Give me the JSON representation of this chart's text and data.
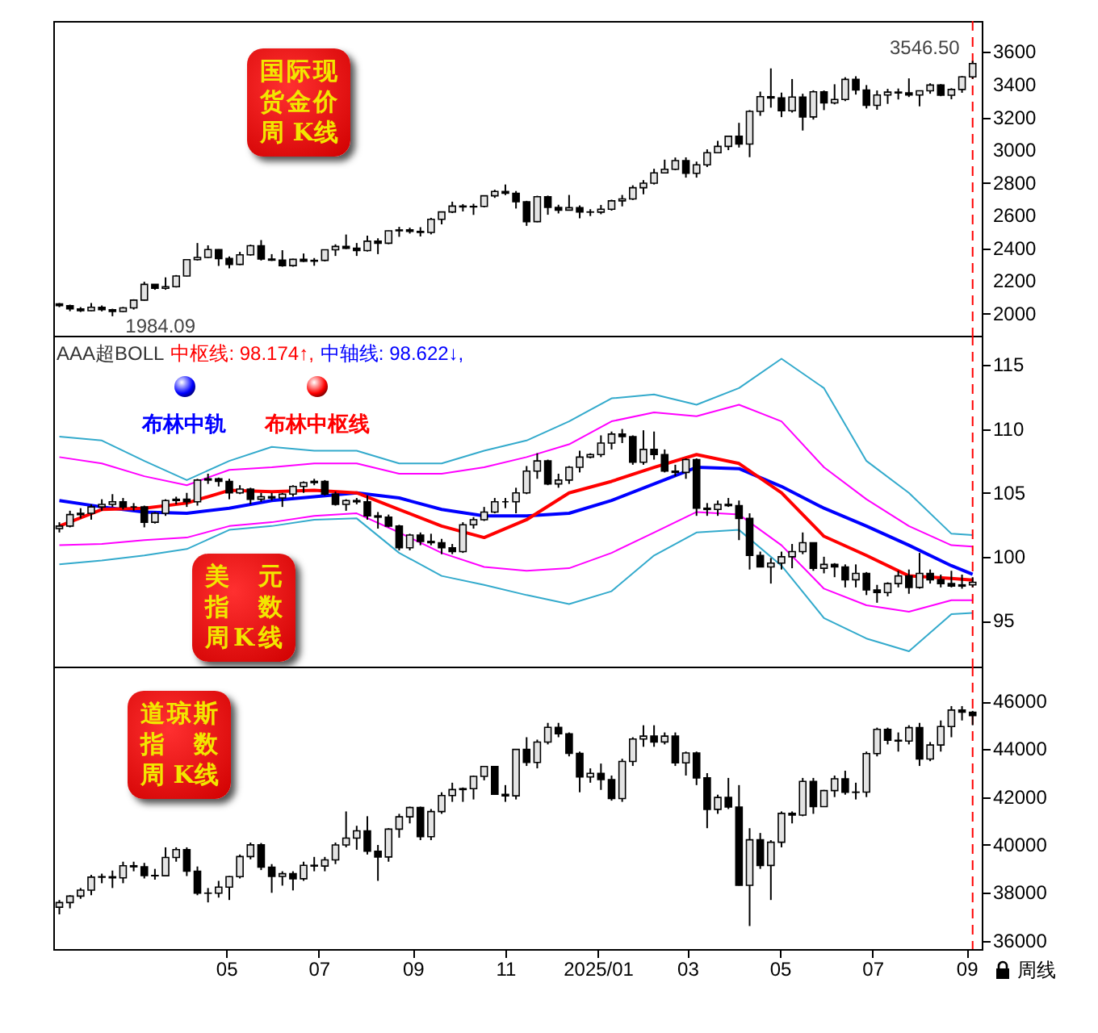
{
  "chart_data": [
    {
      "type": "candlestick",
      "title": "国际现货金价周 K线",
      "tick_labels": "y",
      "xlim": [
        "2024-01-08",
        "2025-09-11"
      ],
      "ylim": [
        1865,
        3790
      ],
      "yticks": [
        2000,
        2200,
        2400,
        2600,
        2800,
        3000,
        3200,
        3400,
        3600
      ],
      "x": [
        "2024-01-12",
        "2024-01-19",
        "2024-01-26",
        "2024-02-02",
        "2024-02-09",
        "2024-02-16",
        "2024-02-23",
        "2024-03-01",
        "2024-03-08",
        "2024-03-15",
        "2024-03-22",
        "2024-03-29",
        "2024-04-05",
        "2024-04-12",
        "2024-04-19",
        "2024-04-26",
        "2024-05-03",
        "2024-05-10",
        "2024-05-17",
        "2024-05-24",
        "2024-05-31",
        "2024-06-07",
        "2024-06-14",
        "2024-06-21",
        "2024-06-28",
        "2024-07-05",
        "2024-07-12",
        "2024-07-19",
        "2024-07-26",
        "2024-08-02",
        "2024-08-09",
        "2024-08-16",
        "2024-08-23",
        "2024-08-30",
        "2024-09-06",
        "2024-09-13",
        "2024-09-20",
        "2024-09-27",
        "2024-10-04",
        "2024-10-11",
        "2024-10-18",
        "2024-10-25",
        "2024-11-01",
        "2024-11-08",
        "2024-11-15",
        "2024-11-22",
        "2024-11-29",
        "2024-12-06",
        "2024-12-13",
        "2024-12-20",
        "2024-12-27",
        "2025-01-03",
        "2025-01-10",
        "2025-01-17",
        "2025-01-24",
        "2025-01-31",
        "2025-02-07",
        "2025-02-14",
        "2025-02-21",
        "2025-02-28",
        "2025-03-07",
        "2025-03-14",
        "2025-03-21",
        "2025-03-28",
        "2025-04-04",
        "2025-04-11",
        "2025-04-18",
        "2025-04-25",
        "2025-05-02",
        "2025-05-09",
        "2025-05-16",
        "2025-05-23",
        "2025-05-30",
        "2025-06-06",
        "2025-06-13",
        "2025-06-20",
        "2025-06-27",
        "2025-07-04",
        "2025-07-11",
        "2025-07-18",
        "2025-07-25",
        "2025-08-01",
        "2025-08-08",
        "2025-08-15",
        "2025-08-22",
        "2025-08-29",
        "2025-09-05"
      ],
      "ohlc": [
        [
          2060,
          2065,
          2040,
          2049
        ],
        [
          2049,
          2055,
          2015,
          2029
        ],
        [
          2029,
          2040,
          2010,
          2018
        ],
        [
          2018,
          2065,
          2015,
          2039
        ],
        [
          2039,
          2050,
          2014,
          2024
        ],
        [
          2024,
          2030,
          1984.09,
          2013
        ],
        [
          2013,
          2041,
          2010,
          2035
        ],
        [
          2035,
          2088,
          2025,
          2083
        ],
        [
          2083,
          2195,
          2080,
          2179
        ],
        [
          2179,
          2180,
          2146,
          2155
        ],
        [
          2155,
          2222,
          2146,
          2165
        ],
        [
          2165,
          2236,
          2160,
          2230
        ],
        [
          2230,
          2332,
          2228,
          2330
        ],
        [
          2330,
          2432,
          2325,
          2344
        ],
        [
          2344,
          2418,
          2340,
          2392
        ],
        [
          2392,
          2394,
          2292,
          2337
        ],
        [
          2337,
          2350,
          2277,
          2301
        ],
        [
          2301,
          2378,
          2297,
          2360
        ],
        [
          2360,
          2422,
          2355,
          2415
        ],
        [
          2415,
          2450,
          2325,
          2334
        ],
        [
          2334,
          2364,
          2322,
          2327
        ],
        [
          2327,
          2388,
          2287,
          2294
        ],
        [
          2294,
          2336,
          2287,
          2332
        ],
        [
          2332,
          2368,
          2316,
          2321
        ],
        [
          2321,
          2340,
          2293,
          2326
        ],
        [
          2326,
          2392,
          2320,
          2391
        ],
        [
          2391,
          2424,
          2353,
          2411
        ],
        [
          2411,
          2484,
          2395,
          2400
        ],
        [
          2400,
          2432,
          2353,
          2386
        ],
        [
          2386,
          2477,
          2380,
          2443
        ],
        [
          2443,
          2461,
          2364,
          2431
        ],
        [
          2431,
          2509,
          2425,
          2507
        ],
        [
          2507,
          2531,
          2470,
          2512
        ],
        [
          2512,
          2526,
          2490,
          2503
        ],
        [
          2503,
          2529,
          2472,
          2497
        ],
        [
          2497,
          2586,
          2485,
          2577
        ],
        [
          2577,
          2625,
          2546,
          2622
        ],
        [
          2622,
          2685,
          2615,
          2658
        ],
        [
          2658,
          2670,
          2625,
          2653
        ],
        [
          2653,
          2672,
          2604,
          2656
        ],
        [
          2656,
          2722,
          2650,
          2721
        ],
        [
          2721,
          2758,
          2708,
          2747
        ],
        [
          2747,
          2790,
          2725,
          2736
        ],
        [
          2736,
          2750,
          2643,
          2684
        ],
        [
          2684,
          2690,
          2537,
          2563
        ],
        [
          2563,
          2721,
          2559,
          2715
        ],
        [
          2715,
          2722,
          2605,
          2650
        ],
        [
          2650,
          2666,
          2613,
          2633
        ],
        [
          2633,
          2726,
          2630,
          2648
        ],
        [
          2648,
          2662,
          2583,
          2622
        ],
        [
          2622,
          2639,
          2597,
          2621
        ],
        [
          2621,
          2665,
          2608,
          2639
        ],
        [
          2639,
          2697,
          2630,
          2690
        ],
        [
          2690,
          2726,
          2656,
          2702
        ],
        [
          2702,
          2785,
          2695,
          2770
        ],
        [
          2770,
          2817,
          2730,
          2798
        ],
        [
          2798,
          2886,
          2790,
          2861
        ],
        [
          2861,
          2942,
          2860,
          2883
        ],
        [
          2883,
          2955,
          2878,
          2936
        ],
        [
          2936,
          2956,
          2832,
          2858
        ],
        [
          2858,
          2930,
          2832,
          2910
        ],
        [
          2910,
          3005,
          2897,
          2984
        ],
        [
          2984,
          3057,
          2982,
          3023
        ],
        [
          3023,
          3087,
          3000,
          3085
        ],
        [
          3085,
          3167,
          3016,
          3037
        ],
        [
          3037,
          3245,
          2957,
          3237
        ],
        [
          3237,
          3358,
          3210,
          3327
        ],
        [
          3327,
          3500,
          3260,
          3319
        ],
        [
          3319,
          3352,
          3202,
          3241
        ],
        [
          3241,
          3435,
          3230,
          3325
        ],
        [
          3325,
          3345,
          3120,
          3203
        ],
        [
          3203,
          3366,
          3187,
          3357
        ],
        [
          3357,
          3365,
          3245,
          3289
        ],
        [
          3289,
          3403,
          3280,
          3310
        ],
        [
          3310,
          3446,
          3300,
          3433
        ],
        [
          3433,
          3452,
          3340,
          3368
        ],
        [
          3368,
          3398,
          3255,
          3274
        ],
        [
          3274,
          3365,
          3247,
          3337
        ],
        [
          3337,
          3375,
          3283,
          3355
        ],
        [
          3355,
          3377,
          3310,
          3350
        ],
        [
          3350,
          3439,
          3325,
          3337
        ],
        [
          3337,
          3363,
          3268,
          3363
        ],
        [
          3363,
          3409,
          3345,
          3398
        ],
        [
          3398,
          3404,
          3330,
          3336
        ],
        [
          3336,
          3379,
          3311,
          3371
        ],
        [
          3371,
          3453,
          3351,
          3448
        ],
        [
          3448,
          3546.5,
          3436,
          3530
        ]
      ],
      "annotations": [
        {
          "text": "1984.09",
          "x": "2024-02-16",
          "y": 1984.09
        },
        {
          "text": "3546.50",
          "x": "2025-09-05",
          "y": 3546.5
        }
      ],
      "ref_lines": [
        {
          "axis": "x",
          "value": "2025-09-05",
          "color": "#ff0000",
          "line_style": "dashed"
        }
      ]
    },
    {
      "type": "candlestick",
      "title": "美元指数周K线",
      "tick_labels": "y",
      "legend": "top left",
      "xlim": [
        "2024-01-08",
        "2025-09-11"
      ],
      "ylim": [
        91.4,
        117.3
      ],
      "yticks": [
        95,
        100,
        105,
        110,
        115
      ],
      "x": [
        "2024-01-12",
        "2024-01-19",
        "2024-01-26",
        "2024-02-02",
        "2024-02-09",
        "2024-02-16",
        "2024-02-23",
        "2024-03-01",
        "2024-03-08",
        "2024-03-15",
        "2024-03-22",
        "2024-03-29",
        "2024-04-05",
        "2024-04-12",
        "2024-04-19",
        "2024-04-26",
        "2024-05-03",
        "2024-05-10",
        "2024-05-17",
        "2024-05-24",
        "2024-05-31",
        "2024-06-07",
        "2024-06-14",
        "2024-06-21",
        "2024-06-28",
        "2024-07-05",
        "2024-07-12",
        "2024-07-19",
        "2024-07-26",
        "2024-08-02",
        "2024-08-09",
        "2024-08-16",
        "2024-08-23",
        "2024-08-30",
        "2024-09-06",
        "2024-09-13",
        "2024-09-20",
        "2024-09-27",
        "2024-10-04",
        "2024-10-11",
        "2024-10-18",
        "2024-10-25",
        "2024-11-01",
        "2024-11-08",
        "2024-11-15",
        "2024-11-22",
        "2024-11-29",
        "2024-12-06",
        "2024-12-13",
        "2024-12-20",
        "2024-12-27",
        "2025-01-03",
        "2025-01-10",
        "2025-01-17",
        "2025-01-24",
        "2025-01-31",
        "2025-02-07",
        "2025-02-14",
        "2025-02-21",
        "2025-02-28",
        "2025-03-07",
        "2025-03-14",
        "2025-03-21",
        "2025-03-28",
        "2025-04-04",
        "2025-04-11",
        "2025-04-18",
        "2025-04-25",
        "2025-05-02",
        "2025-05-09",
        "2025-05-16",
        "2025-05-23",
        "2025-05-30",
        "2025-06-06",
        "2025-06-13",
        "2025-06-20",
        "2025-06-27",
        "2025-07-04",
        "2025-07-11",
        "2025-07-18",
        "2025-07-25",
        "2025-08-01",
        "2025-08-08",
        "2025-08-15",
        "2025-08-22",
        "2025-08-29",
        "2025-09-05"
      ],
      "ohlc": [
        [
          102.2,
          102.7,
          101.9,
          102.4
        ],
        [
          102.4,
          103.6,
          102.3,
          103.3
        ],
        [
          103.3,
          103.8,
          103.0,
          103.4
        ],
        [
          103.4,
          104.1,
          102.9,
          103.9
        ],
        [
          103.9,
          104.5,
          103.6,
          104.1
        ],
        [
          104.1,
          104.9,
          103.9,
          104.3
        ],
        [
          104.3,
          104.6,
          103.7,
          103.9
        ],
        [
          103.9,
          104.2,
          103.6,
          103.9
        ],
        [
          103.9,
          104.0,
          102.3,
          102.7
        ],
        [
          102.7,
          103.5,
          102.6,
          103.4
        ],
        [
          103.4,
          104.5,
          103.2,
          104.4
        ],
        [
          104.4,
          104.7,
          104.1,
          104.5
        ],
        [
          104.5,
          105.0,
          103.9,
          104.3
        ],
        [
          104.3,
          106.1,
          104.0,
          106.0
        ],
        [
          106.0,
          106.5,
          105.7,
          106.1
        ],
        [
          106.1,
          106.2,
          105.5,
          105.9
        ],
        [
          105.9,
          106.1,
          104.5,
          105.0
        ],
        [
          105.0,
          105.6,
          104.9,
          105.3
        ],
        [
          105.3,
          105.4,
          104.1,
          104.5
        ],
        [
          104.5,
          105.0,
          104.3,
          104.7
        ],
        [
          104.7,
          105.0,
          104.4,
          104.6
        ],
        [
          104.6,
          105.0,
          103.9,
          104.9
        ],
        [
          104.9,
          105.6,
          104.7,
          105.5
        ],
        [
          105.5,
          105.9,
          105.0,
          105.8
        ],
        [
          105.8,
          106.1,
          105.6,
          105.9
        ],
        [
          105.9,
          106.0,
          104.8,
          104.9
        ],
        [
          104.9,
          105.1,
          104.0,
          104.1
        ],
        [
          104.1,
          104.5,
          103.6,
          104.4
        ],
        [
          104.4,
          104.6,
          104.1,
          104.3
        ],
        [
          104.3,
          104.8,
          102.9,
          103.2
        ],
        [
          103.2,
          103.5,
          102.2,
          103.1
        ],
        [
          103.1,
          103.3,
          102.3,
          102.4
        ],
        [
          102.4,
          102.5,
          100.5,
          100.7
        ],
        [
          100.7,
          101.8,
          100.5,
          101.7
        ],
        [
          101.7,
          101.9,
          100.9,
          101.2
        ],
        [
          101.2,
          101.8,
          100.9,
          101.1
        ],
        [
          101.1,
          101.4,
          100.2,
          100.7
        ],
        [
          100.7,
          101.0,
          100.2,
          100.4
        ],
        [
          100.4,
          102.7,
          100.3,
          102.5
        ],
        [
          102.5,
          103.1,
          102.2,
          102.9
        ],
        [
          102.9,
          103.9,
          102.8,
          103.5
        ],
        [
          103.5,
          104.6,
          103.4,
          104.3
        ],
        [
          104.3,
          104.6,
          103.8,
          104.3
        ],
        [
          104.3,
          105.4,
          103.4,
          105.0
        ],
        [
          105.0,
          107.1,
          104.9,
          106.7
        ],
        [
          106.7,
          108.1,
          106.1,
          107.5
        ],
        [
          107.5,
          107.6,
          105.6,
          105.7
        ],
        [
          105.7,
          106.5,
          105.4,
          106.0
        ],
        [
          106.0,
          107.1,
          105.7,
          107.0
        ],
        [
          107.0,
          108.3,
          106.6,
          107.8
        ],
        [
          107.8,
          108.1,
          107.7,
          108.0
        ],
        [
          108.0,
          109.5,
          107.8,
          108.9
        ],
        [
          108.9,
          109.8,
          108.4,
          109.6
        ],
        [
          109.6,
          110.0,
          108.9,
          109.4
        ],
        [
          109.4,
          109.5,
          107.2,
          107.4
        ],
        [
          107.4,
          109.9,
          107.2,
          108.4
        ],
        [
          108.4,
          109.8,
          107.6,
          108.0
        ],
        [
          108.0,
          108.4,
          106.6,
          106.7
        ],
        [
          106.7,
          107.2,
          106.3,
          106.6
        ],
        [
          106.6,
          107.7,
          106.1,
          107.6
        ],
        [
          107.6,
          107.7,
          103.2,
          103.8
        ],
        [
          103.8,
          104.2,
          103.2,
          103.7
        ],
        [
          103.7,
          104.4,
          103.2,
          104.1
        ],
        [
          104.1,
          104.6,
          103.9,
          104.0
        ],
        [
          104.0,
          104.4,
          101.3,
          103.0
        ],
        [
          103.0,
          103.4,
          99.0,
          100.1
        ],
        [
          100.1,
          100.4,
          99.2,
          99.2
        ],
        [
          99.2,
          99.9,
          97.9,
          99.5
        ],
        [
          99.5,
          100.4,
          99.0,
          100.0
        ],
        [
          100.0,
          101.0,
          99.1,
          100.4
        ],
        [
          100.4,
          101.9,
          100.2,
          101.1
        ],
        [
          101.1,
          101.1,
          98.9,
          99.1
        ],
        [
          99.1,
          100.0,
          98.7,
          99.4
        ],
        [
          99.4,
          99.5,
          98.4,
          99.2
        ],
        [
          99.2,
          99.4,
          97.6,
          98.2
        ],
        [
          98.2,
          99.4,
          97.6,
          98.7
        ],
        [
          98.7,
          98.8,
          97.0,
          97.4
        ],
        [
          97.4,
          97.8,
          96.4,
          97.2
        ],
        [
          97.2,
          98.0,
          96.9,
          97.9
        ],
        [
          97.9,
          98.9,
          97.6,
          98.5
        ],
        [
          98.5,
          99.0,
          97.1,
          97.6
        ],
        [
          97.6,
          100.3,
          97.5,
          98.7
        ],
        [
          98.7,
          99.0,
          97.9,
          98.2
        ],
        [
          98.2,
          98.6,
          97.6,
          97.9
        ],
        [
          97.9,
          98.9,
          97.6,
          97.7
        ],
        [
          97.7,
          98.6,
          97.5,
          97.8
        ],
        [
          97.8,
          98.4,
          97.6,
          98.0
        ]
      ],
      "series": [
        {
          "type": "line",
          "name": "布林中轨",
          "color": "#0000ff",
          "x": [
            "2024-01-12",
            "2024-02-09",
            "2024-03-08",
            "2024-04-05",
            "2024-05-03",
            "2024-05-31",
            "2024-06-28",
            "2024-07-26",
            "2024-08-23",
            "2024-09-20",
            "2024-10-18",
            "2024-11-15",
            "2024-12-13",
            "2025-01-10",
            "2025-02-07",
            "2025-03-07",
            "2025-04-04",
            "2025-05-02",
            "2025-05-30",
            "2025-06-27",
            "2025-07-25",
            "2025-08-22",
            "2025-09-05"
          ],
          "values": [
            104.4,
            103.9,
            103.5,
            103.4,
            103.8,
            104.4,
            104.7,
            105.0,
            104.6,
            103.7,
            103.2,
            103.2,
            103.4,
            104.4,
            105.7,
            107.0,
            106.9,
            105.5,
            103.8,
            102.4,
            100.9,
            99.3,
            98.622
          ]
        },
        {
          "type": "line",
          "name": "布林中枢线",
          "color": "#ff0000",
          "x": [
            "2024-01-12",
            "2024-02-09",
            "2024-03-08",
            "2024-04-05",
            "2024-05-03",
            "2024-05-31",
            "2024-06-28",
            "2024-07-26",
            "2024-08-23",
            "2024-09-20",
            "2024-10-18",
            "2024-11-15",
            "2024-12-13",
            "2025-01-10",
            "2025-02-07",
            "2025-03-07",
            "2025-04-04",
            "2025-05-02",
            "2025-05-30",
            "2025-06-27",
            "2025-07-25",
            "2025-08-22",
            "2025-09-05"
          ],
          "values": [
            102.4,
            103.7,
            103.8,
            104.2,
            105.2,
            105.1,
            105.2,
            105.0,
            103.7,
            102.4,
            101.5,
            102.9,
            105.0,
            105.9,
            107.0,
            108.0,
            107.3,
            105.0,
            101.6,
            100.1,
            98.5,
            98.3,
            98.174
          ]
        },
        {
          "type": "line",
          "color": "#ff00ff",
          "x": [
            "2024-01-12",
            "2024-02-09",
            "2024-03-08",
            "2024-04-05",
            "2024-05-03",
            "2024-05-31",
            "2024-06-28",
            "2024-07-26",
            "2024-08-23",
            "2024-09-20",
            "2024-10-18",
            "2024-11-15",
            "2024-12-13",
            "2025-01-10",
            "2025-02-07",
            "2025-03-07",
            "2025-04-04",
            "2025-05-02",
            "2025-05-30",
            "2025-06-27",
            "2025-07-25",
            "2025-08-22",
            "2025-09-05"
          ],
          "values": [
            107.8,
            107.3,
            106.3,
            105.6,
            106.8,
            107.0,
            107.3,
            107.3,
            106.5,
            106.5,
            107.0,
            107.8,
            108.8,
            110.6,
            111.3,
            111.0,
            111.9,
            110.6,
            107.0,
            104.5,
            102.4,
            100.9,
            100.8
          ]
        },
        {
          "type": "line",
          "color": "#ff00ff",
          "x": [
            "2024-01-12",
            "2024-02-09",
            "2024-03-08",
            "2024-04-05",
            "2024-05-03",
            "2024-05-31",
            "2024-06-28",
            "2024-07-26",
            "2024-08-23",
            "2024-09-20",
            "2024-10-18",
            "2024-11-15",
            "2024-12-13",
            "2025-01-10",
            "2025-02-07",
            "2025-03-07",
            "2025-04-04",
            "2025-05-02",
            "2025-05-30",
            "2025-06-27",
            "2025-07-25",
            "2025-08-22",
            "2025-09-05"
          ],
          "values": [
            100.9,
            101.0,
            101.3,
            101.5,
            102.4,
            102.7,
            103.2,
            103.4,
            101.9,
            100.3,
            99.2,
            98.9,
            99.1,
            100.3,
            101.9,
            103.5,
            103.3,
            100.9,
            97.5,
            96.2,
            95.7,
            96.6,
            96.6
          ]
        },
        {
          "type": "line",
          "color": "#33aacc",
          "x": [
            "2024-01-12",
            "2024-02-09",
            "2024-03-08",
            "2024-04-05",
            "2024-05-03",
            "2024-05-31",
            "2024-06-28",
            "2024-07-26",
            "2024-08-23",
            "2024-09-20",
            "2024-10-18",
            "2024-11-15",
            "2024-12-13",
            "2025-01-10",
            "2025-02-07",
            "2025-03-07",
            "2025-04-04",
            "2025-05-02",
            "2025-05-30",
            "2025-06-27",
            "2025-07-25",
            "2025-08-22",
            "2025-09-05"
          ],
          "values": [
            109.4,
            109.1,
            107.5,
            106.0,
            107.5,
            108.6,
            108.3,
            108.3,
            107.3,
            107.3,
            108.3,
            109.1,
            110.6,
            112.4,
            112.7,
            111.9,
            113.2,
            115.5,
            113.2,
            107.5,
            105.0,
            101.8,
            101.7
          ]
        },
        {
          "type": "line",
          "color": "#33aacc",
          "x": [
            "2024-01-12",
            "2024-02-09",
            "2024-03-08",
            "2024-04-05",
            "2024-05-03",
            "2024-05-31",
            "2024-06-28",
            "2024-07-26",
            "2024-08-23",
            "2024-09-20",
            "2024-10-18",
            "2024-11-15",
            "2024-12-13",
            "2025-01-10",
            "2025-02-07",
            "2025-03-07",
            "2025-04-04",
            "2025-05-02",
            "2025-05-30",
            "2025-06-27",
            "2025-07-25",
            "2025-08-22",
            "2025-09-05"
          ],
          "values": [
            99.4,
            99.7,
            100.1,
            100.6,
            102.1,
            102.4,
            102.9,
            103.0,
            100.3,
            98.5,
            97.8,
            97.0,
            96.3,
            97.3,
            100.1,
            101.9,
            102.1,
            99.3,
            95.2,
            93.6,
            92.6,
            95.5,
            95.6
          ]
        }
      ],
      "annotations": [
        "AAA超BOLL",
        "中枢线: 98.174↑,",
        "中轴线: 98.622↓,"
      ],
      "ref_lines": [
        {
          "axis": "x",
          "value": "2025-09-05",
          "color": "#ff0000",
          "line_style": "dashed"
        }
      ]
    },
    {
      "type": "candlestick",
      "title": "道琼斯指数周 K线",
      "xlim": [
        "2024-01-08",
        "2025-09-11"
      ],
      "ylim": [
        35650,
        47450
      ],
      "yticks": [
        36000,
        38000,
        40000,
        42000,
        44000,
        46000
      ],
      "xticks": [
        {
          "value": "2024-05-01",
          "label": "05"
        },
        {
          "value": "2024-07-01",
          "label": "07"
        },
        {
          "value": "2024-09-01",
          "label": "09"
        },
        {
          "value": "2024-11-01",
          "label": "11"
        },
        {
          "value": "2025-01-01",
          "label": "2025/01"
        },
        {
          "value": "2025-03-01",
          "label": "03"
        },
        {
          "value": "2025-05-01",
          "label": "05"
        },
        {
          "value": "2025-07-01",
          "label": "07"
        },
        {
          "value": "2025-09-01",
          "label": "09"
        }
      ],
      "x": [
        "2024-01-12",
        "2024-01-19",
        "2024-01-26",
        "2024-02-02",
        "2024-02-09",
        "2024-02-16",
        "2024-02-23",
        "2024-03-01",
        "2024-03-08",
        "2024-03-15",
        "2024-03-22",
        "2024-03-29",
        "2024-04-05",
        "2024-04-12",
        "2024-04-19",
        "2024-04-26",
        "2024-05-03",
        "2024-05-10",
        "2024-05-17",
        "2024-05-24",
        "2024-05-31",
        "2024-06-07",
        "2024-06-14",
        "2024-06-21",
        "2024-06-28",
        "2024-07-05",
        "2024-07-12",
        "2024-07-19",
        "2024-07-26",
        "2024-08-02",
        "2024-08-09",
        "2024-08-16",
        "2024-08-23",
        "2024-08-30",
        "2024-09-06",
        "2024-09-13",
        "2024-09-20",
        "2024-09-27",
        "2024-10-04",
        "2024-10-11",
        "2024-10-18",
        "2024-10-25",
        "2024-11-01",
        "2024-11-08",
        "2024-11-15",
        "2024-11-22",
        "2024-11-29",
        "2024-12-06",
        "2024-12-13",
        "2024-12-20",
        "2024-12-27",
        "2025-01-03",
        "2025-01-10",
        "2025-01-17",
        "2025-01-24",
        "2025-01-31",
        "2025-02-07",
        "2025-02-14",
        "2025-02-21",
        "2025-02-28",
        "2025-03-07",
        "2025-03-14",
        "2025-03-21",
        "2025-03-28",
        "2025-04-04",
        "2025-04-11",
        "2025-04-18",
        "2025-04-25",
        "2025-05-02",
        "2025-05-09",
        "2025-05-16",
        "2025-05-23",
        "2025-05-30",
        "2025-06-06",
        "2025-06-13",
        "2025-06-20",
        "2025-06-27",
        "2025-07-04",
        "2025-07-11",
        "2025-07-18",
        "2025-07-25",
        "2025-08-01",
        "2025-08-08",
        "2025-08-15",
        "2025-08-22",
        "2025-08-29",
        "2025-09-05"
      ],
      "ohlc": [
        [
          37400,
          37700,
          37100,
          37593
        ],
        [
          37593,
          37900,
          37350,
          37863
        ],
        [
          37863,
          38200,
          37750,
          38109
        ],
        [
          38109,
          38750,
          37900,
          38654
        ],
        [
          38654,
          38800,
          38400,
          38671
        ],
        [
          38671,
          38930,
          38200,
          38627
        ],
        [
          38627,
          39300,
          38400,
          39131
        ],
        [
          39131,
          39300,
          38900,
          39087
        ],
        [
          39087,
          39250,
          38600,
          38722
        ],
        [
          38722,
          39000,
          38550,
          38714
        ],
        [
          38714,
          39900,
          38700,
          39475
        ],
        [
          39475,
          39900,
          39300,
          39807
        ],
        [
          39807,
          39900,
          38700,
          38904
        ],
        [
          38904,
          39100,
          37900,
          37983
        ],
        [
          37983,
          38200,
          37600,
          37986
        ],
        [
          37986,
          38500,
          37800,
          38239
        ],
        [
          38239,
          38700,
          37700,
          38675
        ],
        [
          38675,
          39600,
          38600,
          39513
        ],
        [
          39513,
          40100,
          39400,
          40004
        ],
        [
          40004,
          40080,
          38950,
          39070
        ],
        [
          39070,
          39200,
          38000,
          38686
        ],
        [
          38686,
          38900,
          38300,
          38799
        ],
        [
          38799,
          38900,
          38100,
          38589
        ],
        [
          38589,
          39300,
          38500,
          39150
        ],
        [
          39150,
          39500,
          38900,
          39119
        ],
        [
          39119,
          39500,
          38900,
          39376
        ],
        [
          39376,
          40100,
          39200,
          40001
        ],
        [
          40001,
          41400,
          39900,
          40288
        ],
        [
          40288,
          40800,
          39800,
          40589
        ],
        [
          40589,
          41200,
          39600,
          39737
        ],
        [
          39737,
          40000,
          38500,
          39498
        ],
        [
          39498,
          40700,
          39300,
          40660
        ],
        [
          40660,
          41300,
          40300,
          41175
        ],
        [
          41175,
          41600,
          40900,
          41563
        ],
        [
          41563,
          41600,
          40200,
          40345
        ],
        [
          40345,
          41500,
          40200,
          41394
        ],
        [
          41394,
          42200,
          41300,
          42063
        ],
        [
          42063,
          42600,
          41800,
          42313
        ],
        [
          42313,
          42400,
          41800,
          42353
        ],
        [
          42353,
          42900,
          41900,
          42864
        ],
        [
          42864,
          43300,
          42700,
          43276
        ],
        [
          43276,
          43300,
          42100,
          42114
        ],
        [
          42114,
          42500,
          41800,
          42052
        ],
        [
          42052,
          44000,
          41900,
          43989
        ],
        [
          43989,
          44500,
          43300,
          43445
        ],
        [
          43445,
          44400,
          43200,
          44297
        ],
        [
          44297,
          45100,
          44200,
          44911
        ],
        [
          44911,
          45100,
          44500,
          44643
        ],
        [
          44643,
          44700,
          43700,
          43828
        ],
        [
          43828,
          43900,
          42200,
          42840
        ],
        [
          42840,
          43200,
          42600,
          42992
        ],
        [
          42992,
          43400,
          42300,
          42732
        ],
        [
          42732,
          42900,
          41850,
          41938
        ],
        [
          41938,
          43600,
          41800,
          43488
        ],
        [
          43488,
          44500,
          43300,
          44424
        ],
        [
          44424,
          45000,
          44100,
          44545
        ],
        [
          44545,
          45000,
          44100,
          44303
        ],
        [
          44303,
          44700,
          44200,
          44546
        ],
        [
          44546,
          44700,
          43300,
          43428
        ],
        [
          43428,
          43900,
          42900,
          43841
        ],
        [
          43841,
          43900,
          42500,
          42802
        ],
        [
          42802,
          43000,
          40700,
          41488
        ],
        [
          41488,
          42100,
          41300,
          41985
        ],
        [
          41985,
          42800,
          41500,
          41583
        ],
        [
          41583,
          42500,
          38300,
          38315
        ],
        [
          38315,
          40700,
          36612,
          40213
        ],
        [
          40213,
          40500,
          39000,
          39142
        ],
        [
          39142,
          40200,
          37700,
          40114
        ],
        [
          40114,
          41400,
          39900,
          41317
        ],
        [
          41317,
          41400,
          40900,
          41249
        ],
        [
          41249,
          42800,
          41200,
          42655
        ],
        [
          42655,
          42800,
          41300,
          41603
        ],
        [
          41603,
          42300,
          41600,
          42270
        ],
        [
          42270,
          42900,
          42000,
          42763
        ],
        [
          42763,
          43100,
          42100,
          42197
        ],
        [
          42197,
          42600,
          41900,
          42207
        ],
        [
          42207,
          43900,
          42000,
          43819
        ],
        [
          43819,
          44900,
          43700,
          44829
        ],
        [
          44829,
          44900,
          44200,
          44372
        ],
        [
          44372,
          44700,
          43900,
          44342
        ],
        [
          44342,
          45000,
          44200,
          44902
        ],
        [
          44902,
          45100,
          43300,
          43589
        ],
        [
          43589,
          44300,
          43500,
          44176
        ],
        [
          44176,
          45200,
          43900,
          44946
        ],
        [
          44946,
          45800,
          44500,
          45632
        ],
        [
          45632,
          45800,
          45200,
          45545
        ],
        [
          45545,
          45600,
          45000,
          45401
        ]
      ],
      "annotations": [
        "周线"
      ],
      "ref_lines": [
        {
          "axis": "x",
          "value": "2025-09-05",
          "color": "#ff0000",
          "line_style": "dashed"
        }
      ]
    }
  ]
}
